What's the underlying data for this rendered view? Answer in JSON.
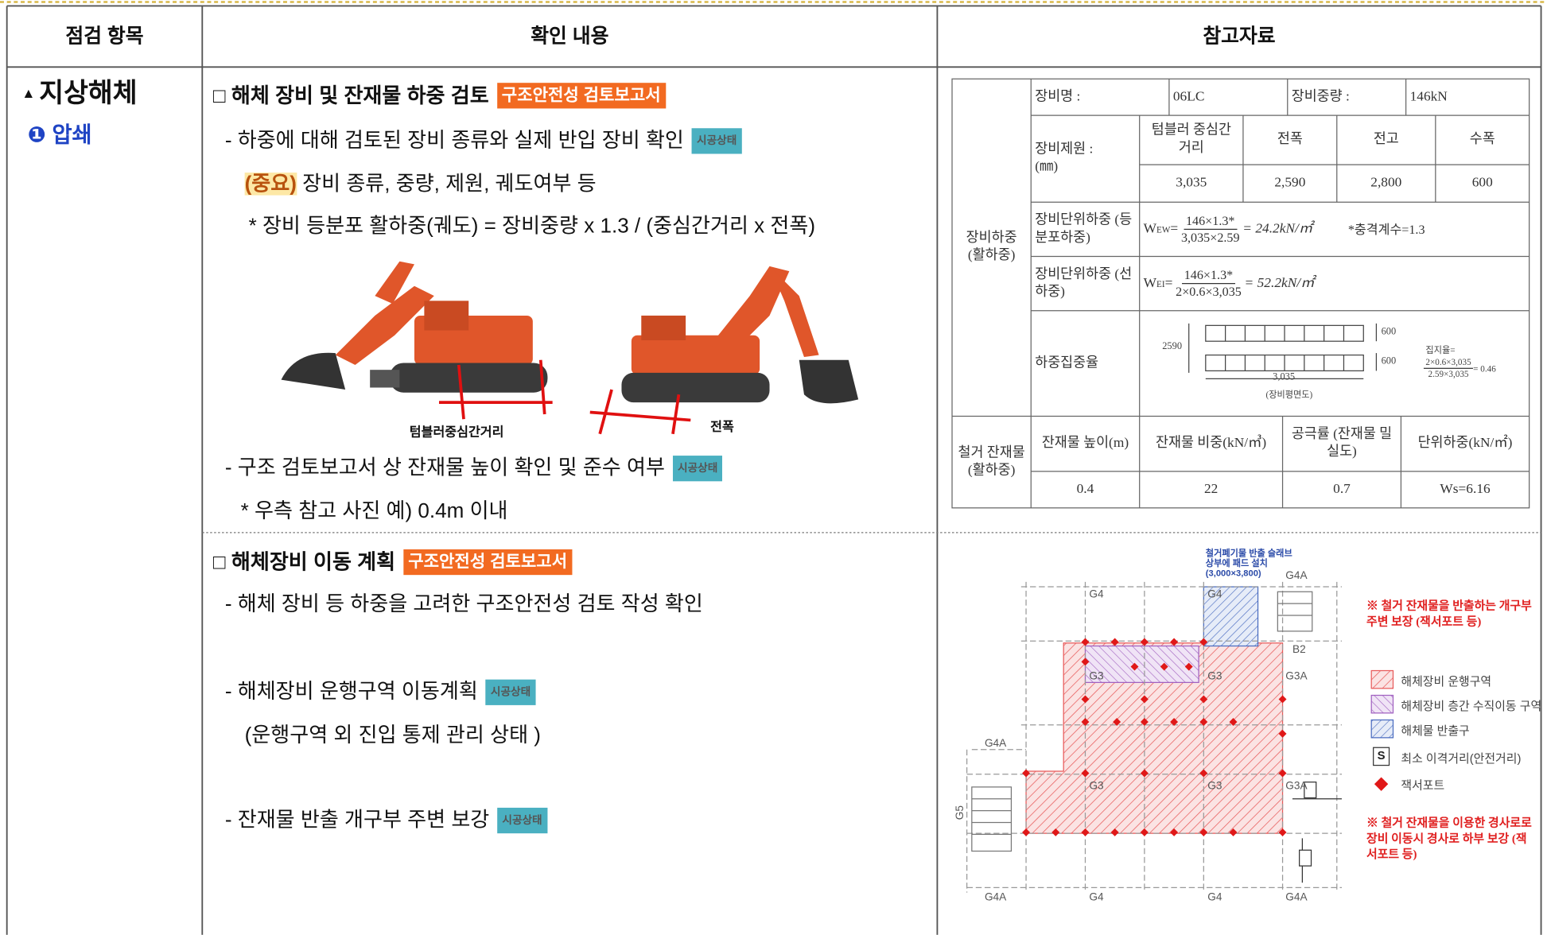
{
  "header": {
    "item": "점검 항목",
    "content": "확인 내용",
    "reference": "참고자료"
  },
  "rows": [
    {
      "item": "지상해체",
      "subitem_number": "❶",
      "subitem": "압쇄",
      "heading": "□ 해체 장비 및 잔재물 하중 검토",
      "heading_tag": "구조안전성 검토보고서",
      "lines": [
        {
          "text": "- 하중에 대해 검토된 장비 종류와 실제 반입 장비 확인",
          "tag": "시공상태"
        },
        {
          "emphasis": "(중요)",
          "text": "장비 종류, 중량, 제원, 궤도여부 등"
        },
        {
          "text": "* 장비 등분포 활하중(궤도) = 장비중량 x 1.3 / (중심간거리 x 전폭)"
        },
        {
          "text": "- 구조 검토보고서 상 잔재물 높이 확인 및 준수 여부",
          "tag": "시공상태"
        },
        {
          "text": "* 우측 참고 사진 예) 0.4m 이내"
        }
      ],
      "photo_labels": [
        "텀블러중심간거리",
        "전폭"
      ],
      "reference_table": {
        "load_group": "장비하중 (활하중)",
        "equipment_name_label": "장비명 :",
        "equipment_name": "06LC",
        "weight_label": "장비중량 :",
        "weight": "146kN",
        "spec_label": "장비제원 : (㎜)",
        "spec_headers": [
          "텀블러 중심간 거리",
          "전폭",
          "전고",
          "수폭"
        ],
        "spec_values": [
          "3,035",
          "2,590",
          "2,800",
          "600"
        ],
        "uniform_label": "장비단위하중 (등분포하중)",
        "uniform_formula": {
          "symbol": "W",
          "subscript": "EW",
          "equals": "=",
          "numerator": "146×1.3*",
          "denominator": "3,035×2.59",
          "result": "= 24.2kN/㎡"
        },
        "impact_note": "*충격계수=1.3",
        "line_label": "장비단위하중 (선하중)",
        "line_formula": {
          "symbol": "W",
          "subscript": "EI",
          "equals": "=",
          "numerator": "146×1.3*",
          "denominator": "2×0.6×3,035",
          "result": "= 52.2kN/㎡"
        },
        "concentration_label": "하중집중율",
        "concentration_diagram": {
          "width": "2590",
          "pad_1": "600",
          "pad_2": "600",
          "length": "3,035",
          "caption": "(장비평면도)",
          "ratio_label": "집지율=",
          "ratio_numerator": "2×0.6×3,035",
          "ratio_denominator": "2.59×3,035",
          "ratio_result": "= 0.46"
        },
        "debris_group": "철거 잔재물 (활하중)",
        "debris_headers": [
          "잔재물 높이(m)",
          "잔재물 비중(kN/㎥)",
          "공극률 (잔재물 밀실도)",
          "단위하중(kN/㎡)"
        ],
        "debris_values": [
          "0.4",
          "22",
          "0.7",
          "Ws=6.16"
        ]
      }
    },
    {
      "heading": "□ 해체장비 이동 계획",
      "heading_tag": "구조안전성 검토보고서",
      "lines": [
        {
          "text": "- 해체 장비 등 하중을 고려한 구조안전성 검토 작성 확인"
        },
        {
          "text": "- 해체장비 운행구역 이동계획",
          "tag": "시공상태"
        },
        {
          "text": "(운행구역 외 진입 통제 관리 상태 )"
        },
        {
          "text": "- 잔재물 반출 개구부 주변 보강",
          "tag": "시공상태"
        }
      ],
      "plan": {
        "top_note": "철거폐기물 반출 슬래브 상부에 패드 설치 (3,000×3,800)",
        "grid_labels": [
          "G4",
          "G4",
          "G4A",
          "G3",
          "G3",
          "G3A",
          "B2",
          "G4A",
          "G3",
          "G3",
          "G3A",
          "G4A",
          "G4",
          "G4",
          "G4A",
          "G5"
        ],
        "legend": [
          "해체장비 운행구역",
          "해체장비 층간 수직이동 구역",
          "해체물 반출구",
          "최소 이격거리(안전거리)",
          "잭서포트"
        ],
        "legend_symbol": "S",
        "note_opening": "※ 철거 잔재물을 반출하는 개구부 주변 보장 (잭서포트 등)",
        "note_ramp": "※ 철거 잔재물을 이용한 경사로로 장비 이동시 경사로 하부 보강 (잭서포트 등)"
      }
    }
  ]
}
